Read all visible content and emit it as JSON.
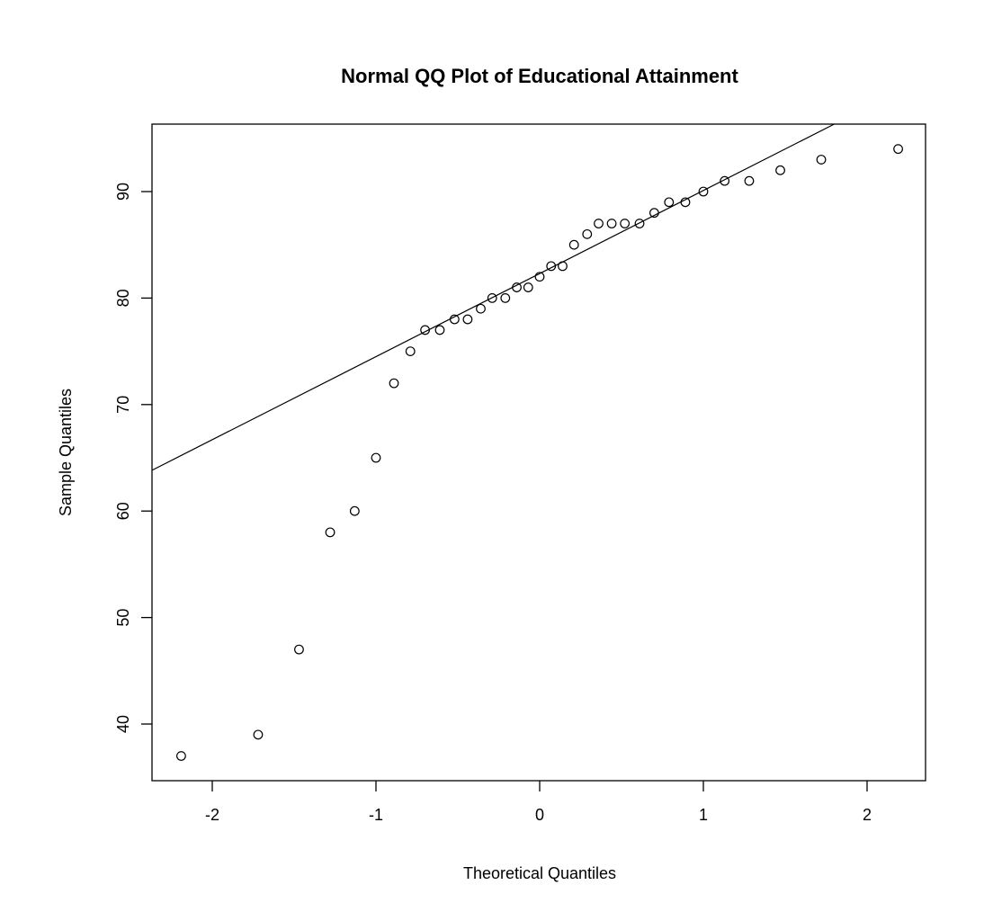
{
  "chart_data": {
    "type": "scatter",
    "title": "Normal QQ Plot of Educational Attainment",
    "xlabel": "Theoretical Quantiles",
    "ylabel": "Sample Quantiles",
    "xlim": [
      -2.37,
      2.37
    ],
    "ylim": [
      34.7,
      96.3
    ],
    "xticks": [
      -2,
      -1,
      0,
      1,
      2
    ],
    "xtick_labels": [
      "-2",
      "-1",
      "0",
      "1",
      "2"
    ],
    "yticks": [
      40,
      50,
      60,
      70,
      80,
      90
    ],
    "ytick_labels": [
      "40",
      "50",
      "60",
      "70",
      "80",
      "90"
    ],
    "grid": false,
    "legend": null,
    "marker": "open-circle",
    "series": [
      {
        "name": "sample",
        "x": [
          -2.19,
          -1.72,
          -1.47,
          -1.28,
          -1.13,
          -1.0,
          -0.89,
          -0.79,
          -0.7,
          -0.61,
          -0.52,
          -0.44,
          -0.36,
          -0.29,
          -0.21,
          -0.14,
          -0.07,
          0.0,
          0.07,
          0.14,
          0.21,
          0.29,
          0.36,
          0.44,
          0.52,
          0.61,
          0.7,
          0.79,
          0.89,
          1.0,
          1.13,
          1.28,
          1.47,
          1.72,
          2.19
        ],
        "y": [
          37,
          39,
          47,
          58,
          60,
          65,
          72,
          75,
          77,
          77,
          78,
          78,
          79,
          80,
          80,
          81,
          81,
          82,
          83,
          83,
          85,
          86,
          87,
          87,
          87,
          87,
          88,
          89,
          89,
          90,
          91,
          91,
          92,
          93,
          94
        ]
      }
    ],
    "reference_line": {
      "type": "qqline",
      "intercept": 82.3,
      "slope": 7.8
    }
  }
}
